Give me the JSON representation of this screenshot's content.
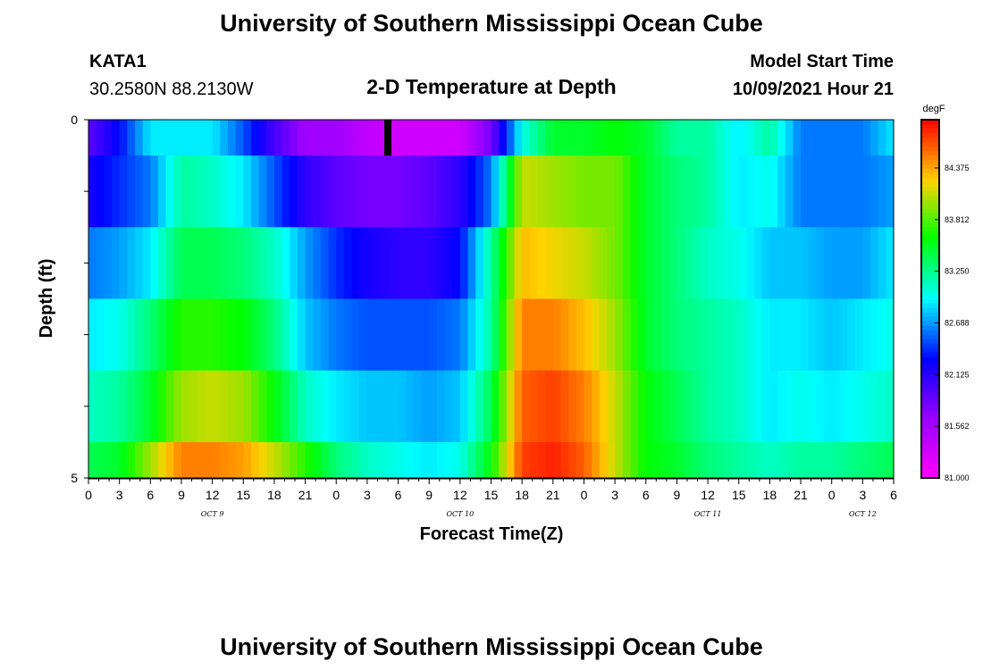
{
  "header": {
    "title": "University of Southern Mississippi Ocean Cube",
    "station": "KATA1",
    "coords": "30.2580N  88.2130W",
    "plot_title": "2-D Temperature at Depth",
    "model_label": "Model Start Time",
    "model_time": "10/09/2021 Hour 21"
  },
  "footer": {
    "title": "University of Southern Mississippi Ocean Cube"
  },
  "colorbar": {
    "unit": "degF",
    "ticks": [
      "84.375",
      "83.812",
      "83.250",
      "82.688",
      "82.125",
      "81.562",
      "81.000"
    ],
    "range": [
      81.0,
      84.9
    ]
  },
  "chart_data": {
    "type": "heatmap",
    "xlabel": "Forecast Time(Z)",
    "ylabel": "Depth (ft)",
    "x_tick_labels": [
      "0",
      "3",
      "6",
      "9",
      "12",
      "15",
      "18",
      "21",
      "0",
      "3",
      "6",
      "9",
      "12",
      "15",
      "18",
      "21",
      "0",
      "3",
      "6",
      "9",
      "12",
      "15",
      "18",
      "21",
      "0",
      "3",
      "6"
    ],
    "date_labels": [
      {
        "label": "OCT 9",
        "hour": 12
      },
      {
        "label": "OCT 10",
        "hour": 36
      },
      {
        "label": "OCT 11",
        "hour": 60
      },
      {
        "label": "OCT 12",
        "hour": 75
      }
    ],
    "x_range_hours": [
      0,
      78
    ],
    "y_tick_labels": [
      "0",
      "5"
    ],
    "ylim": [
      0,
      5
    ],
    "depth_layers": [
      "0-0.5",
      "0.5-1.5",
      "1.5-2.5",
      "2.5-3.5",
      "3.5-4.5",
      "4.5-5"
    ],
    "current_time_marker_hour": 29,
    "x_hours": [
      0,
      3,
      6,
      9,
      12,
      15,
      18,
      21,
      24,
      27,
      30,
      33,
      36,
      39,
      42,
      45,
      48,
      51,
      54,
      57,
      60,
      63,
      66,
      69,
      72,
      75,
      78
    ],
    "values_degF": [
      [
        81.9,
        82.3,
        82.9,
        82.9,
        82.9,
        82.5,
        82.0,
        81.6,
        81.6,
        81.4,
        81.3,
        81.3,
        81.3,
        81.8,
        83.0,
        83.5,
        83.5,
        83.6,
        83.5,
        83.2,
        83.2,
        82.9,
        83.2,
        82.6,
        82.6,
        82.6,
        82.9
      ],
      [
        82.2,
        82.4,
        82.6,
        83.2,
        83.1,
        82.9,
        82.5,
        82.1,
        81.9,
        81.8,
        81.8,
        81.9,
        82.1,
        82.6,
        84.1,
        84.0,
        83.9,
        83.9,
        83.5,
        83.3,
        83.2,
        82.9,
        83.0,
        82.6,
        82.6,
        82.6,
        82.7
      ],
      [
        82.6,
        82.7,
        82.9,
        83.4,
        83.4,
        83.3,
        83.1,
        82.7,
        82.4,
        82.2,
        82.1,
        82.1,
        82.3,
        83.2,
        84.3,
        84.2,
        84.1,
        83.9,
        83.5,
        83.3,
        83.1,
        83.0,
        82.8,
        82.8,
        82.7,
        82.7,
        82.9
      ],
      [
        82.9,
        83.0,
        83.3,
        83.7,
        83.7,
        83.6,
        83.3,
        82.8,
        82.6,
        82.5,
        82.5,
        82.5,
        82.6,
        83.2,
        84.5,
        84.5,
        84.3,
        84.0,
        83.5,
        83.3,
        83.2,
        83.1,
        82.9,
        82.9,
        82.8,
        82.9,
        83.0
      ],
      [
        83.1,
        83.2,
        83.5,
        84.0,
        84.1,
        84.0,
        83.6,
        83.1,
        82.9,
        82.8,
        82.8,
        82.7,
        82.8,
        83.4,
        84.6,
        84.7,
        84.5,
        84.1,
        83.6,
        83.4,
        83.2,
        83.1,
        82.9,
        83.0,
        82.9,
        83.0,
        83.1
      ],
      [
        83.4,
        83.5,
        84.0,
        84.5,
        84.5,
        84.4,
        84.1,
        83.7,
        83.3,
        83.1,
        83.0,
        82.9,
        83.0,
        83.6,
        84.7,
        84.8,
        84.6,
        84.1,
        83.6,
        83.5,
        83.3,
        83.2,
        83.1,
        83.2,
        83.2,
        83.3,
        83.4
      ]
    ]
  }
}
